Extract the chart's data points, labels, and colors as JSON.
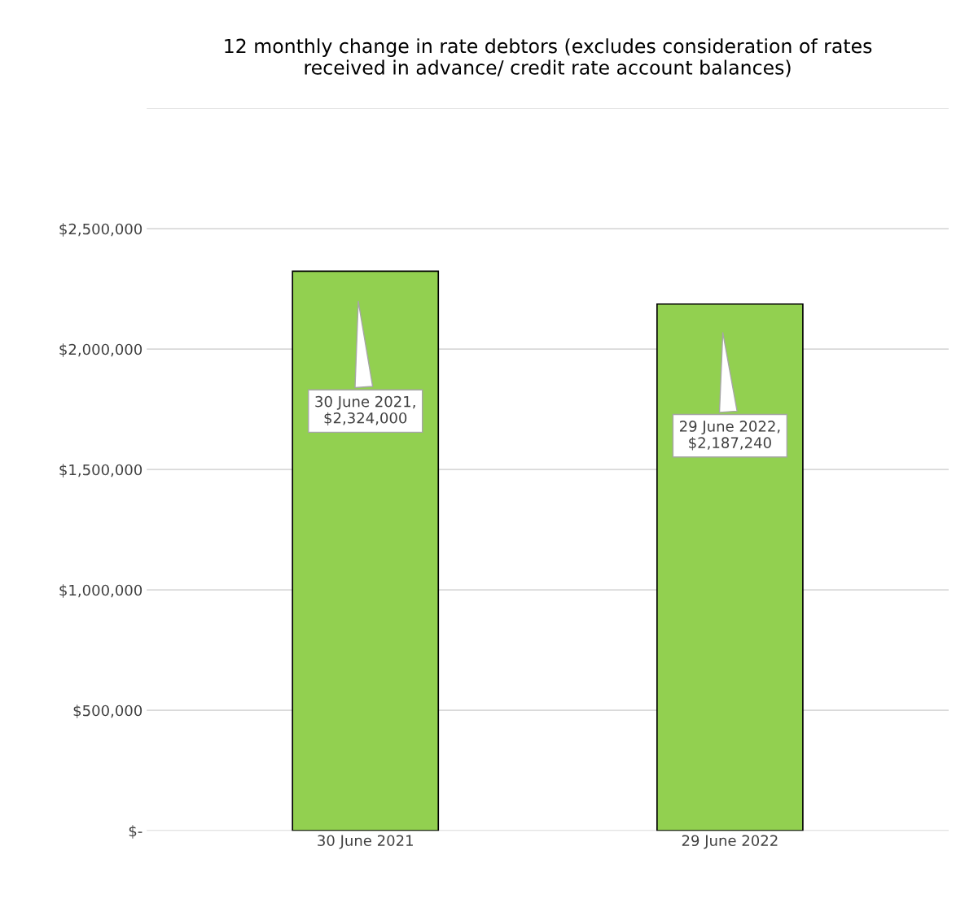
{
  "chart_data": {
    "type": "bar",
    "title": "12 monthly change in rate debtors (excludes consideration of rates\nreceived in advance/ credit rate account balances)",
    "categories": [
      "30 June 2021",
      "29 June 2022"
    ],
    "values": [
      2324000,
      2187240
    ],
    "color": "#92d050",
    "value_labels": [
      "30 June 2021,\n$2,324,000",
      "29 June 2022,\n$2,187,240"
    ],
    "ylim": [
      0,
      3000000
    ],
    "yticks": [
      {
        "value": 0,
        "label": "$-"
      },
      {
        "value": 500000,
        "label": "$500,000"
      },
      {
        "value": 1000000,
        "label": "$1,000,000"
      },
      {
        "value": 1500000,
        "label": "$1,500,000"
      },
      {
        "value": 2000000,
        "label": "$2,000,000"
      },
      {
        "value": 2500000,
        "label": "$2,500,000"
      },
      {
        "value": 3000000,
        "label": null
      }
    ],
    "grid": "y",
    "legend": false
  }
}
